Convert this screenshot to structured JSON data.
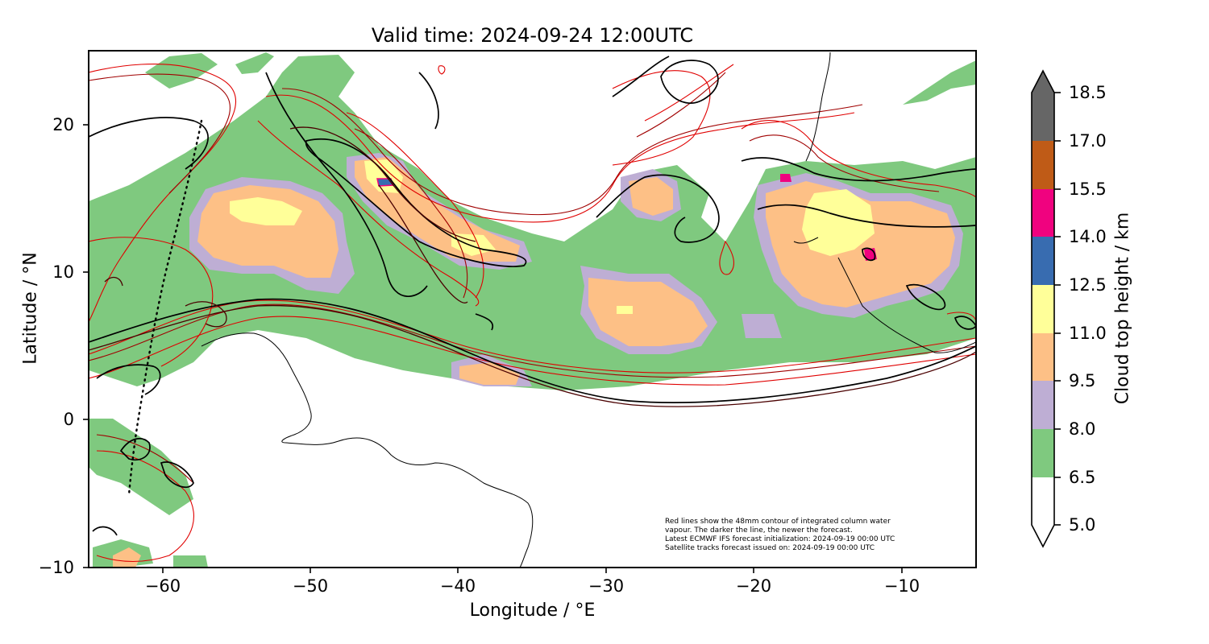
{
  "title": "Valid time: 2024-09-24 12:00UTC",
  "map": {
    "type": "forecast-map",
    "xlabel": "Longitude / °E",
    "ylabel": "Latitude / °N",
    "lon_range": [
      -65,
      -5
    ],
    "lat_range": [
      -10,
      25
    ],
    "xticks": [
      "−60",
      "−50",
      "−40",
      "−30",
      "−20",
      "−10"
    ],
    "yticks": [
      "20",
      "10",
      "0",
      "−10"
    ]
  },
  "colorbar": {
    "label": "Cloud top height / km",
    "ticks": [
      "18.5",
      "17.0",
      "15.5",
      "14.0",
      "12.5",
      "11.0",
      "9.5",
      "8.0",
      "6.5",
      "5.0"
    ],
    "levels": [
      5.0,
      6.5,
      8.0,
      9.5,
      11.0,
      12.5,
      14.0,
      15.5,
      17.0,
      18.5
    ],
    "colors": [
      "#ffffff",
      "#7fc97f",
      "#beaed4",
      "#fdc086",
      "#ffff99",
      "#386cb0",
      "#f0027f",
      "#bf5b17",
      "#666666"
    ],
    "extend": "both"
  },
  "note": {
    "line1": "Red lines show the 48mm contour of integrated column water",
    "line2": "vapour. The darker the line, the newer the forecast.",
    "line3": "Latest ECMWF IFS forecast initialization: 2024-09-19 00:00 UTC",
    "line4": "Satellite tracks forecast issued on: 2024-09-19 00:00 UTC"
  }
}
